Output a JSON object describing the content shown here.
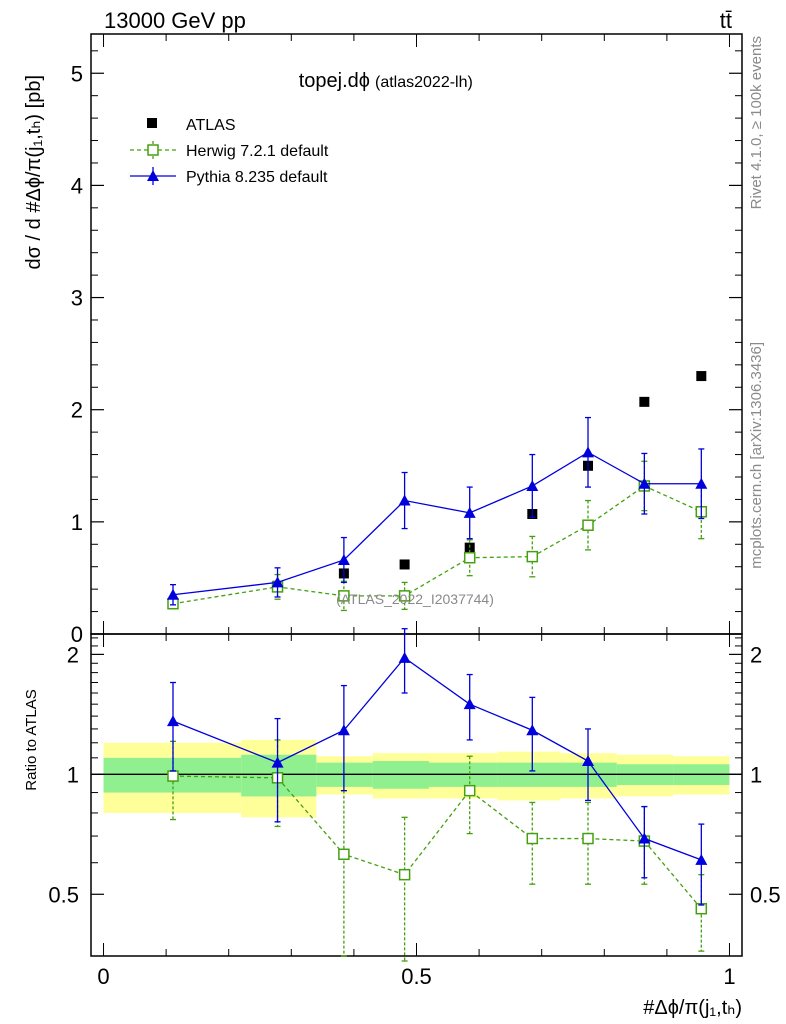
{
  "header": {
    "left": "13000 GeV pp",
    "right": "tt̄"
  },
  "side_labels": {
    "rivet": "Rivet 4.1.0, ≥ 100k events",
    "mcplots": "mcplots.cern.ch [arXiv:1306.3436]"
  },
  "chart_data": [
    {
      "type": "scatter",
      "panel": "main",
      "title": "topej.dϕ",
      "subtitle": "(atlas2022-lh)",
      "watermark": "(ATLAS_2022_I2037744)",
      "ylabel": "dσ / d #Δϕ/π(j₁,tₕ) [pb]",
      "ylim": [
        0,
        5.35
      ],
      "yticks": [
        "0",
        "1",
        "2",
        "3",
        "4",
        "5"
      ],
      "legend_position": "top-left",
      "x": [
        0.111,
        0.278,
        0.384,
        0.481,
        0.585,
        0.685,
        0.774,
        0.864,
        0.955
      ],
      "series": [
        {
          "name": "ATLAS",
          "marker": "square-filled",
          "color": "#000000",
          "values": [
            0.28,
            0.43,
            0.54,
            0.62,
            0.77,
            1.07,
            1.5,
            2.07,
            2.3
          ]
        },
        {
          "name": "Herwig 7.2.1 default",
          "marker": "square-open",
          "color": "#44a010",
          "line": "dashed",
          "values": [
            0.27,
            0.42,
            0.34,
            0.34,
            0.68,
            0.69,
            0.97,
            1.32,
            1.09
          ],
          "errors": [
            0.04,
            0.11,
            0.13,
            0.12,
            0.16,
            0.18,
            0.22,
            0.22,
            0.24
          ]
        },
        {
          "name": "Pythia 8.235 default",
          "marker": "triangle-filled",
          "color": "#0000dd",
          "line": "solid",
          "values": [
            0.35,
            0.46,
            0.66,
            1.19,
            1.08,
            1.32,
            1.62,
            1.34,
            1.34
          ],
          "errors": [
            0.09,
            0.13,
            0.2,
            0.25,
            0.23,
            0.28,
            0.31,
            0.27,
            0.31
          ]
        }
      ]
    },
    {
      "type": "scatter",
      "panel": "ratio",
      "ylabel": "Ratio to ATLAS",
      "ylim": [
        0.35,
        2.25
      ],
      "yticks": [
        "0.5",
        "1",
        "2"
      ],
      "xlabel": "#Δϕ/π(j₁,tₕ)",
      "xlim": [
        -0.02,
        1.02
      ],
      "xticks": [
        "0",
        "0.5",
        "1"
      ],
      "bands": {
        "edges": [
          0,
          0.22,
          0.34,
          0.43,
          0.52,
          0.63,
          0.73,
          0.82,
          0.91,
          1.0
        ],
        "inner": [
          0.1,
          0.12,
          0.07,
          0.08,
          0.07,
          0.07,
          0.07,
          0.06,
          0.06
        ],
        "outer": [
          0.2,
          0.22,
          0.11,
          0.13,
          0.13,
          0.14,
          0.13,
          0.12,
          0.11
        ]
      },
      "series": [
        {
          "name": "Herwig 7.2.1 default",
          "values": [
            0.99,
            0.98,
            0.63,
            0.56,
            0.91,
            0.69,
            0.69,
            0.68,
            0.46
          ],
          "errors": [
            0.22,
            0.24,
            0.28,
            0.22,
            0.2,
            0.16,
            0.16,
            0.15,
            0.1
          ]
        },
        {
          "name": "Pythia 8.235 default",
          "values": [
            1.36,
            1.07,
            1.29,
            1.96,
            1.5,
            1.29,
            1.08,
            0.69,
            0.61
          ],
          "errors": [
            0.34,
            0.31,
            0.38,
            0.36,
            0.28,
            0.27,
            0.22,
            0.14,
            0.14
          ]
        }
      ]
    }
  ]
}
